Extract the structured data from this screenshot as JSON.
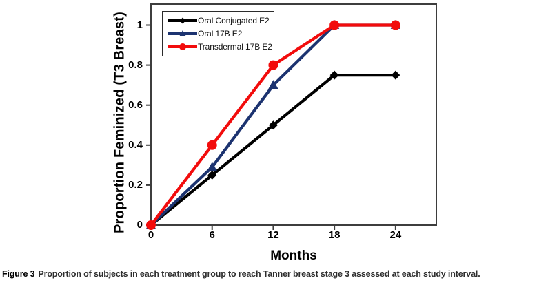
{
  "figure": {
    "caption_prefix": "Figure 3",
    "caption_body": "Proportion of subjects in each treatment group to reach Tanner breast stage 3 assessed at each study interval."
  },
  "chart_data": {
    "type": "line",
    "title": "",
    "xlabel": "Months",
    "ylabel": "Proportion Feminized (T3 Breast)",
    "x": [
      0,
      6,
      12,
      18,
      24
    ],
    "x_tick_labels": [
      "0",
      "6",
      "12",
      "18",
      "24"
    ],
    "y_tick_values": [
      0,
      0.2,
      0.4,
      0.6,
      0.8,
      1
    ],
    "y_tick_labels": [
      "0",
      "0.2",
      "0.4",
      "0.6",
      "0.8",
      "1"
    ],
    "xlim": [
      0,
      28
    ],
    "ylim": [
      0,
      1.105
    ],
    "grid": false,
    "legend_position": "top-left-inside",
    "axis_color": "#3d3d3d",
    "series": [
      {
        "name": "Oral Conjugated E2",
        "color": "#000000",
        "marker": "diamond",
        "values": [
          0,
          0.25,
          0.5,
          0.75,
          0.75
        ]
      },
      {
        "name": "Oral 17B E2",
        "color": "#1c3370",
        "marker": "triangle",
        "values": [
          0,
          0.29,
          0.7,
          1,
          1
        ]
      },
      {
        "name": "Transdermal 17B E2",
        "color": "#f20c0c",
        "marker": "circle",
        "values": [
          0,
          0.4,
          0.8,
          1,
          1
        ]
      }
    ]
  }
}
